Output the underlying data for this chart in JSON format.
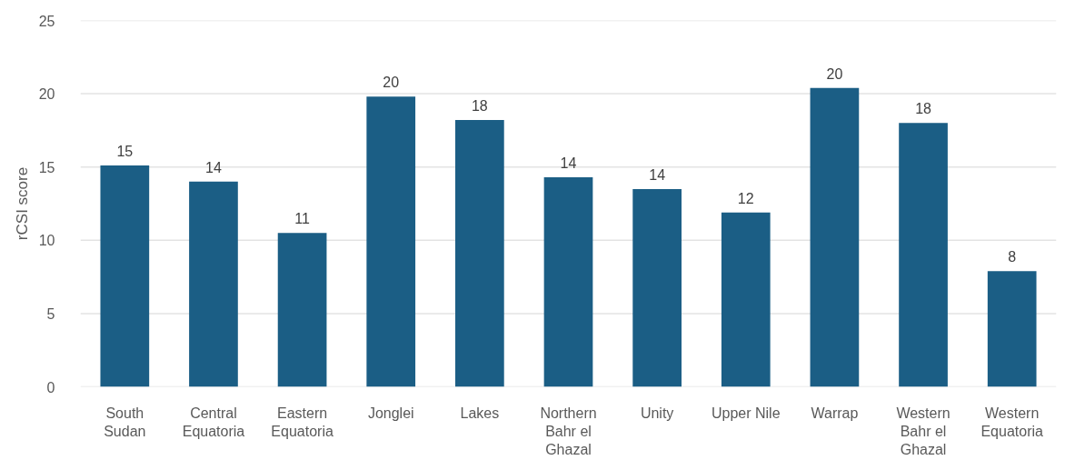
{
  "chart_data": {
    "type": "bar",
    "ylabel": "rCSI score",
    "categories": [
      "South Sudan",
      "Central Equatoria",
      "Eastern Equatoria",
      "Jonglei",
      "Lakes",
      "Northern Bahr el Ghazal",
      "Unity",
      "Upper Nile",
      "Warrap",
      "Western Bahr el Ghazal",
      "Western Equatoria"
    ],
    "values": [
      15.1,
      14.0,
      10.5,
      19.8,
      18.2,
      14.3,
      13.5,
      11.9,
      20.4,
      18.0,
      7.9
    ],
    "value_labels": [
      "15",
      "14",
      "11",
      "20",
      "18",
      "14",
      "14",
      "12",
      "20",
      "18",
      "8"
    ],
    "color": "#1b5e85",
    "ylim": [
      0,
      25
    ],
    "yticks": [
      0,
      5,
      10,
      15,
      20,
      25
    ],
    "grid": "y"
  }
}
